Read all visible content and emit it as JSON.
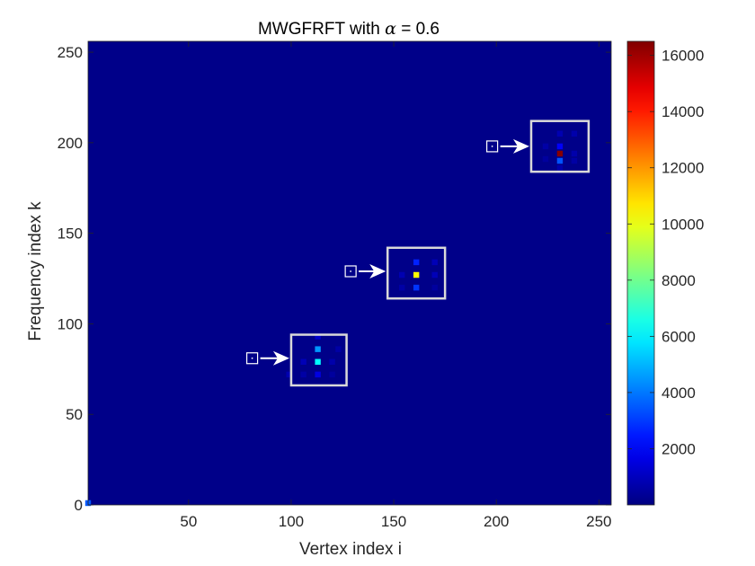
{
  "chart_data": {
    "type": "heatmap",
    "title_prefix": "MWGFRFT with ",
    "title_symbol": "α",
    "title_suffix": " = 0.6",
    "xlabel": "Vertex index i",
    "ylabel": "Frequency index k",
    "xlim": [
      1,
      256
    ],
    "ylim": [
      0,
      256
    ],
    "xticks": [
      50,
      100,
      150,
      200,
      250
    ],
    "yticks": [
      0,
      50,
      100,
      150,
      200,
      250
    ],
    "colorbar": {
      "colormap": "jet",
      "clim": [
        0,
        16500
      ],
      "ticks": [
        2000,
        4000,
        6000,
        8000,
        10000,
        12000,
        14000,
        16000
      ]
    },
    "background_value": 150,
    "cells": [
      {
        "i": 113,
        "k": 93,
        "value": 1200
      },
      {
        "i": 113,
        "k": 86,
        "value": 4500
      },
      {
        "i": 123,
        "k": 86,
        "value": 600
      },
      {
        "i": 106,
        "k": 79,
        "value": 900
      },
      {
        "i": 113,
        "k": 79,
        "value": 6200
      },
      {
        "i": 120,
        "k": 79,
        "value": 700
      },
      {
        "i": 99,
        "k": 72,
        "value": 800
      },
      {
        "i": 106,
        "k": 72,
        "value": 600
      },
      {
        "i": 113,
        "k": 72,
        "value": 1600
      },
      {
        "i": 120,
        "k": 72,
        "value": 500
      },
      {
        "i": 161,
        "k": 134,
        "value": 2600
      },
      {
        "i": 170,
        "k": 134,
        "value": 900
      },
      {
        "i": 154,
        "k": 127,
        "value": 800
      },
      {
        "i": 161,
        "k": 127,
        "value": 10300
      },
      {
        "i": 170,
        "k": 127,
        "value": 900
      },
      {
        "i": 154,
        "k": 120,
        "value": 600
      },
      {
        "i": 161,
        "k": 120,
        "value": 2900
      },
      {
        "i": 170,
        "k": 120,
        "value": 500
      },
      {
        "i": 231,
        "k": 205,
        "value": 800
      },
      {
        "i": 238,
        "k": 205,
        "value": 700
      },
      {
        "i": 231,
        "k": 198,
        "value": 2000
      },
      {
        "i": 224,
        "k": 198,
        "value": 600
      },
      {
        "i": 231,
        "k": 194,
        "value": 16400
      },
      {
        "i": 238,
        "k": 194,
        "value": 700
      },
      {
        "i": 224,
        "k": 191,
        "value": 500
      },
      {
        "i": 231,
        "k": 190,
        "value": 3400
      },
      {
        "i": 238,
        "k": 190,
        "value": 600
      },
      {
        "i": 231,
        "k": 186,
        "value": 700
      },
      {
        "i": 1,
        "k": 1,
        "value": 3500
      }
    ],
    "annotations": [
      {
        "box_i": [
          100,
          127
        ],
        "box_k": [
          66,
          94
        ],
        "marker_i": 81,
        "marker_k": 81
      },
      {
        "box_i": [
          147,
          175
        ],
        "box_k": [
          114,
          142
        ],
        "marker_i": 129,
        "marker_k": 129
      },
      {
        "box_i": [
          217,
          245
        ],
        "box_k": [
          184,
          212
        ],
        "marker_i": 198,
        "marker_k": 198
      }
    ]
  }
}
